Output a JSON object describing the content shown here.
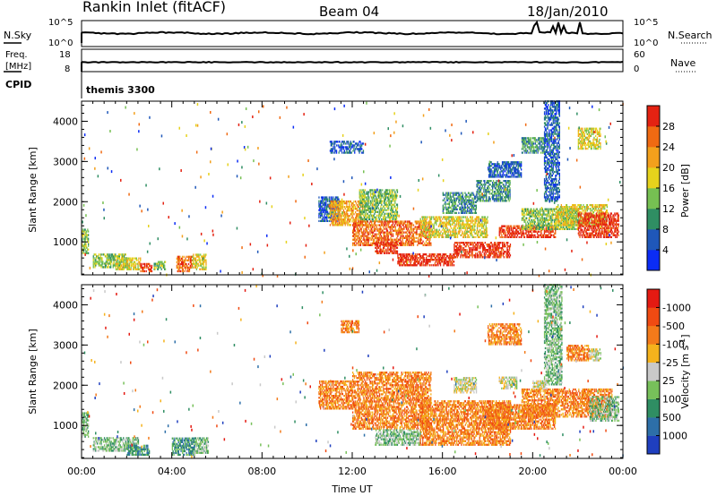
{
  "header": {
    "station": "Rankin Inlet (fitACF)",
    "beam": "Beam 04",
    "date": "18/Jan/2010"
  },
  "nsky_panel": {
    "left_label": "N.Sky",
    "right_label": "N.Search",
    "left_ticks": [
      "10^5",
      "10^0"
    ],
    "right_ticks": [
      "10^5",
      "10^0"
    ]
  },
  "freq_panel": {
    "left_label_line1": "Freq.",
    "left_label_line2": "[MHz]",
    "right_label": "Nave",
    "left_ticks": [
      "18",
      "8"
    ],
    "right_ticks": [
      "60",
      "0"
    ]
  },
  "cpid": {
    "label": "CPID",
    "value": "themis 3300"
  },
  "chart_data": [
    {
      "type": "heatmap",
      "quantity": "Power",
      "ylabel": "Slant Range [km]",
      "xlabel": "",
      "x_ticks": [
        "00:00",
        "04:00",
        "08:00",
        "12:00",
        "16:00",
        "20:00",
        "00:00"
      ],
      "y_ticks": [
        1000,
        2000,
        3000,
        4000
      ],
      "ylim": [
        180,
        4500
      ],
      "xlim_hours": [
        0,
        24
      ],
      "colorbar": {
        "label": "Power [dB]",
        "ticks": [
          "4",
          "8",
          "12",
          "16",
          "20",
          "24",
          "28"
        ],
        "colors": [
          "#0b2cf5",
          "#1f57b9",
          "#2f8e63",
          "#76c052",
          "#e6d21c",
          "#f3a01c",
          "#f06a12",
          "#e42212"
        ]
      },
      "regions": [
        {
          "t": [
            0.0,
            0.3
          ],
          "r": [
            700,
            1300
          ],
          "level": 3
        },
        {
          "t": [
            0.5,
            2.0
          ],
          "r": [
            350,
            700
          ],
          "level": 3
        },
        {
          "t": [
            1.5,
            2.6
          ],
          "r": [
            300,
            600
          ],
          "level": 4
        },
        {
          "t": [
            2.6,
            3.1
          ],
          "r": [
            250,
            450
          ],
          "level": 7
        },
        {
          "t": [
            3.2,
            3.7
          ],
          "r": [
            300,
            500
          ],
          "level": 3
        },
        {
          "t": [
            4.2,
            4.9
          ],
          "r": [
            250,
            650
          ],
          "level": 6
        },
        {
          "t": [
            4.9,
            5.5
          ],
          "r": [
            300,
            700
          ],
          "level": 4
        },
        {
          "t": [
            10.5,
            11.4
          ],
          "r": [
            1500,
            2100
          ],
          "level": 1
        },
        {
          "t": [
            11.0,
            12.5
          ],
          "r": [
            1400,
            2000
          ],
          "level": 5
        },
        {
          "t": [
            12.3,
            14.0
          ],
          "r": [
            1500,
            2300
          ],
          "level": 3
        },
        {
          "t": [
            12.0,
            15.5
          ],
          "r": [
            900,
            1500
          ],
          "level": 6
        },
        {
          "t": [
            13.0,
            14.0
          ],
          "r": [
            700,
            1000
          ],
          "level": 7
        },
        {
          "t": [
            14.0,
            16.5
          ],
          "r": [
            400,
            700
          ],
          "level": 7
        },
        {
          "t": [
            15.0,
            18.0
          ],
          "r": [
            1100,
            1600
          ],
          "level": 4
        },
        {
          "t": [
            16.5,
            19.0
          ],
          "r": [
            600,
            1000
          ],
          "level": 7
        },
        {
          "t": [
            18.5,
            21.0
          ],
          "r": [
            1100,
            1400
          ],
          "level": 7
        },
        {
          "t": [
            19.5,
            22.0
          ],
          "r": [
            1300,
            1800
          ],
          "level": 3
        },
        {
          "t": [
            21.0,
            23.3
          ],
          "r": [
            1400,
            1900
          ],
          "level": 4
        },
        {
          "t": [
            22.0,
            23.8
          ],
          "r": [
            1100,
            1700
          ],
          "level": 7
        },
        {
          "t": [
            16.0,
            17.5
          ],
          "r": [
            1700,
            2200
          ],
          "level": 2
        },
        {
          "t": [
            17.5,
            19.0
          ],
          "r": [
            2000,
            2500
          ],
          "level": 2
        },
        {
          "t": [
            11.0,
            12.5
          ],
          "r": [
            3200,
            3500
          ],
          "level": 1
        },
        {
          "t": [
            18.0,
            19.5
          ],
          "r": [
            2600,
            3000
          ],
          "level": 1
        },
        {
          "t": [
            19.5,
            20.5
          ],
          "r": [
            3200,
            3600
          ],
          "level": 2
        },
        {
          "t": [
            20.5,
            21.2
          ],
          "r": [
            2000,
            4500
          ],
          "level": 1
        },
        {
          "t": [
            22.0,
            23.0
          ],
          "r": [
            3300,
            3800
          ],
          "level": 4
        }
      ]
    },
    {
      "type": "heatmap",
      "quantity": "Velocity",
      "ylabel": "Slant Range [km]",
      "xlabel": "Time UT",
      "x_ticks": [
        "00:00",
        "04:00",
        "08:00",
        "12:00",
        "16:00",
        "20:00",
        "00:00"
      ],
      "y_ticks": [
        1000,
        2000,
        3000,
        4000
      ],
      "ylim": [
        180,
        4500
      ],
      "xlim_hours": [
        0,
        24
      ],
      "colorbar": {
        "label": "Velocity [m s",
        "label_sup": "-1",
        "label_end": "]",
        "ticks": [
          "1000",
          "500",
          "100",
          "25",
          "-25",
          "-100",
          "-500",
          "-1000"
        ],
        "colors": [
          "#1f3fbf",
          "#2d6fa8",
          "#2f8e63",
          "#77c05a",
          "#c9c9c9",
          "#f5b21c",
          "#f37a1a",
          "#f04a12",
          "#e41a12"
        ]
      },
      "regions": [
        {
          "t": [
            0.0,
            0.3
          ],
          "r": [
            700,
            1300
          ],
          "level": 3
        },
        {
          "t": [
            0.5,
            2.5
          ],
          "r": [
            350,
            700
          ],
          "level": 3
        },
        {
          "t": [
            2.0,
            3.0
          ],
          "r": [
            250,
            500
          ],
          "level": 2
        },
        {
          "t": [
            4.0,
            5.0
          ],
          "r": [
            250,
            700
          ],
          "level": 2
        },
        {
          "t": [
            5.0,
            5.6
          ],
          "r": [
            300,
            700
          ],
          "level": 3
        },
        {
          "t": [
            10.5,
            12.0
          ],
          "r": [
            1400,
            2100
          ],
          "level": 6
        },
        {
          "t": [
            12.0,
            15.5
          ],
          "r": [
            900,
            2300
          ],
          "level": 6
        },
        {
          "t": [
            13.0,
            15.0
          ],
          "r": [
            500,
            900
          ],
          "level": 3
        },
        {
          "t": [
            15.0,
            19.0
          ],
          "r": [
            500,
            1600
          ],
          "level": 6
        },
        {
          "t": [
            18.0,
            21.0
          ],
          "r": [
            900,
            1500
          ],
          "level": 6
        },
        {
          "t": [
            19.5,
            23.5
          ],
          "r": [
            1200,
            1900
          ],
          "level": 6
        },
        {
          "t": [
            22.5,
            23.8
          ],
          "r": [
            1100,
            1700
          ],
          "level": 3
        },
        {
          "t": [
            16.5,
            17.5
          ],
          "r": [
            1800,
            2200
          ],
          "level": 4
        },
        {
          "t": [
            18.5,
            19.3
          ],
          "r": [
            1900,
            2200
          ],
          "level": 4
        },
        {
          "t": [
            20.0,
            20.6
          ],
          "r": [
            1900,
            2100
          ],
          "level": 4
        },
        {
          "t": [
            18.0,
            19.5
          ],
          "r": [
            3000,
            3500
          ],
          "level": 6
        },
        {
          "t": [
            20.5,
            21.3
          ],
          "r": [
            2000,
            4500
          ],
          "level": 3
        },
        {
          "t": [
            21.5,
            22.5
          ],
          "r": [
            2600,
            3000
          ],
          "level": 6
        },
        {
          "t": [
            22.5,
            23.0
          ],
          "r": [
            2600,
            2900
          ],
          "level": 4
        },
        {
          "t": [
            11.5,
            12.3
          ],
          "r": [
            3300,
            3600
          ],
          "level": 6
        }
      ]
    }
  ]
}
